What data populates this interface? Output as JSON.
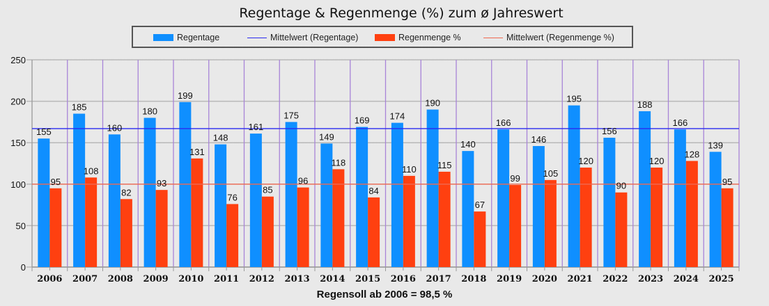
{
  "chart_data": {
    "type": "bar",
    "title": "Regentage & Regenmenge (%) zum ø Jahreswert",
    "xlabel": "",
    "ylabel": "",
    "ylim": [
      0,
      250
    ],
    "yticks": [
      0,
      50,
      100,
      150,
      200,
      250
    ],
    "grid": true,
    "legend_position": "top-center",
    "categories": [
      "2006",
      "2007",
      "2008",
      "2009",
      "2010",
      "2011",
      "2012",
      "2013",
      "2014",
      "2015",
      "2016",
      "2017",
      "2018",
      "2019",
      "2020",
      "2021",
      "2022",
      "2023",
      "2024",
      "2025"
    ],
    "series": [
      {
        "name": "Regentage",
        "kind": "bar",
        "color": "#0f8fff",
        "values": [
          155,
          185,
          160,
          180,
          199,
          148,
          161,
          175,
          149,
          169,
          174,
          190,
          140,
          166,
          146,
          195,
          156,
          188,
          166,
          139
        ]
      },
      {
        "name": "Regenmenge %",
        "kind": "bar",
        "color": "#ff4010",
        "values": [
          95,
          108,
          82,
          93,
          131,
          76,
          85,
          96,
          118,
          84,
          110,
          115,
          67,
          99,
          105,
          120,
          90,
          120,
          128,
          95
        ]
      }
    ],
    "reference_lines": [
      {
        "name": "Mittelwert (Regentage)",
        "value": 167,
        "color": "#2a2af0"
      },
      {
        "name": "Mittelwert (Regenmenge %)",
        "value": 100,
        "color": "#f06850"
      }
    ],
    "annotation": "Regensoll ab 2006  =  98,5 %"
  },
  "legend": [
    {
      "label": "Regentage",
      "type": "bar",
      "color": "#0f8fff"
    },
    {
      "label": "Mittelwert (Regentage)",
      "type": "line",
      "color": "#2a2af0"
    },
    {
      "label": "Regenmenge %",
      "type": "bar",
      "color": "#ff4010"
    },
    {
      "label": "Mittelwert (Regenmenge %)",
      "type": "line",
      "color": "#f06850"
    }
  ],
  "colors": {
    "grid": "#b8b8b8",
    "divider": "#a884d8",
    "axis": "#999999"
  }
}
